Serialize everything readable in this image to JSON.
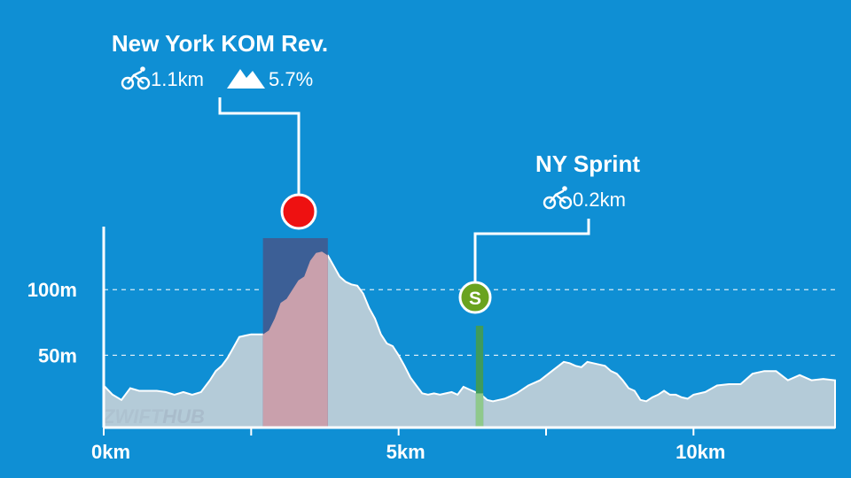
{
  "brand": {
    "watermark_a": "ZWIFT",
    "watermark_b": "HUB"
  },
  "colors": {
    "background": "#0f8fd4",
    "profile_fill": "#b4cbd8",
    "kom_segment": "#3c5f96",
    "kom_profile": "#c9a0ac",
    "sprint_segment": "#3f9b5c",
    "kom_marker": "#ee1111",
    "sprint_marker": "#6aa31f"
  },
  "segments": [
    {
      "name": "New York KOM Rev.",
      "type": "kom",
      "distance": "1.1km",
      "grade": "5.7%",
      "icon": "cyclist-icon",
      "grade_icon": "mountain-icon",
      "start_km": 2.7,
      "end_km": 3.8
    },
    {
      "name": "NY Sprint",
      "type": "sprint",
      "distance": "0.2km",
      "icon": "cyclist-icon",
      "marker_label": "S",
      "start_km": 6.25,
      "end_km": 6.45
    }
  ],
  "chart_data": {
    "type": "area",
    "title": "",
    "xlabel": "",
    "ylabel": "",
    "x_unit": "km",
    "y_unit": "m",
    "xlim": [
      0,
      12.4
    ],
    "ylim": [
      -5,
      148
    ],
    "x_ticks": [
      {
        "value": 0,
        "label": "0km"
      },
      {
        "value": 2.5,
        "label": ""
      },
      {
        "value": 5,
        "label": "5km"
      },
      {
        "value": 7.5,
        "label": ""
      },
      {
        "value": 10,
        "label": "10km"
      }
    ],
    "y_ticks": [
      {
        "value": 50,
        "label": "50m"
      },
      {
        "value": 100,
        "label": "100m"
      }
    ],
    "gridlines": "horizontal dashed at y ticks",
    "x": [
      0,
      0.15,
      0.3,
      0.45,
      0.6,
      0.75,
      0.9,
      1.05,
      1.2,
      1.35,
      1.5,
      1.65,
      1.8,
      1.9,
      2.0,
      2.1,
      2.2,
      2.3,
      2.4,
      2.5,
      2.6,
      2.7,
      2.8,
      2.9,
      3.0,
      3.1,
      3.2,
      3.3,
      3.4,
      3.5,
      3.6,
      3.7,
      3.8,
      3.9,
      4.0,
      4.1,
      4.2,
      4.3,
      4.4,
      4.5,
      4.6,
      4.7,
      4.8,
      4.9,
      5.0,
      5.1,
      5.2,
      5.3,
      5.4,
      5.5,
      5.6,
      5.7,
      5.8,
      5.9,
      6.0,
      6.1,
      6.2,
      6.3,
      6.4,
      6.5,
      6.6,
      6.7,
      6.8,
      6.9,
      7.0,
      7.2,
      7.4,
      7.6,
      7.8,
      7.9,
      8.0,
      8.1,
      8.2,
      8.3,
      8.4,
      8.5,
      8.6,
      8.7,
      8.8,
      8.9,
      9.0,
      9.1,
      9.2,
      9.3,
      9.4,
      9.5,
      9.6,
      9.7,
      9.8,
      9.9,
      10.0,
      10.2,
      10.4,
      10.6,
      10.8,
      11.0,
      11.2,
      11.4,
      11.6,
      11.8,
      12.0,
      12.2,
      12.4
    ],
    "y": [
      27,
      20,
      16,
      25,
      23,
      23,
      23,
      22,
      20,
      22,
      20,
      22,
      31,
      38,
      42,
      48,
      56,
      64,
      65,
      66,
      66,
      66,
      69,
      78,
      90,
      93,
      100,
      107,
      110,
      122,
      128,
      129,
      126,
      118,
      110,
      106,
      104,
      103,
      97,
      86,
      78,
      66,
      59,
      57,
      50,
      42,
      33,
      27,
      21,
      20,
      21,
      20,
      21,
      22,
      20,
      26,
      24,
      22,
      20,
      16,
      15,
      16,
      17,
      19,
      21,
      27,
      31,
      38,
      45,
      44,
      42,
      41,
      45,
      44,
      43,
      42,
      38,
      36,
      31,
      25,
      23,
      16,
      15,
      18,
      20,
      23,
      20,
      20,
      18,
      17,
      20,
      22,
      27,
      28,
      28,
      36,
      38,
      38,
      31,
      35,
      31,
      32,
      31
    ]
  }
}
